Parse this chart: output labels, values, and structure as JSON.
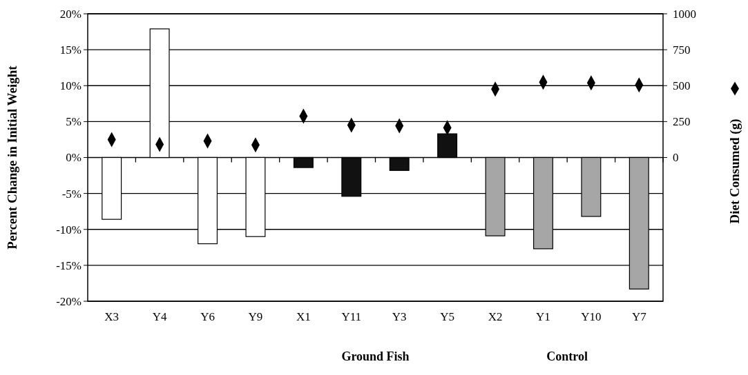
{
  "chart_data": {
    "type": "bar",
    "ylabel": "Percent Change in Initial Weight",
    "y2label": "Diet Consumed (g)",
    "categories": [
      "X3",
      "Y4",
      "Y6",
      "Y9",
      "X1",
      "Y11",
      "Y3",
      "Y5",
      "X2",
      "Y1",
      "Y10",
      "Y7"
    ],
    "series": [
      {
        "type": "bar",
        "colors": [
          "#ffffff",
          "#ffffff",
          "#ffffff",
          "#ffffff",
          "#111111",
          "#111111",
          "#111111",
          "#111111",
          "#a6a6a6",
          "#a6a6a6",
          "#a6a6a6",
          "#a6a6a6"
        ],
        "values": [
          -8.6,
          17.9,
          -12,
          -11,
          -1.4,
          -5.4,
          -1.8,
          3.3,
          -10.9,
          -12.7,
          -8.2,
          -18.3
        ]
      },
      {
        "type": "scatter",
        "axis": "y2",
        "color": "#000000",
        "marker": "diamond",
        "values": [
          125,
          91,
          115,
          87,
          288,
          226,
          221,
          207,
          476,
          524,
          519,
          505
        ]
      }
    ],
    "ylim": [
      -20,
      20
    ],
    "yticks": [
      {
        "value": -20,
        "label": "-20%"
      },
      {
        "value": -15,
        "label": "-15%"
      },
      {
        "value": -10,
        "label": "-10%"
      },
      {
        "value": -5,
        "label": "-5%"
      },
      {
        "value": 0,
        "label": "0%"
      },
      {
        "value": 5,
        "label": "5%"
      },
      {
        "value": 10,
        "label": "10%"
      },
      {
        "value": 15,
        "label": "15%"
      },
      {
        "value": 20,
        "label": "20%"
      }
    ],
    "y2lim": [
      -1000,
      1000
    ],
    "y2ticks": [
      0,
      250,
      500,
      750,
      1000
    ],
    "grid": "y",
    "annotations": [
      "Ground Fish",
      "Control"
    ]
  }
}
